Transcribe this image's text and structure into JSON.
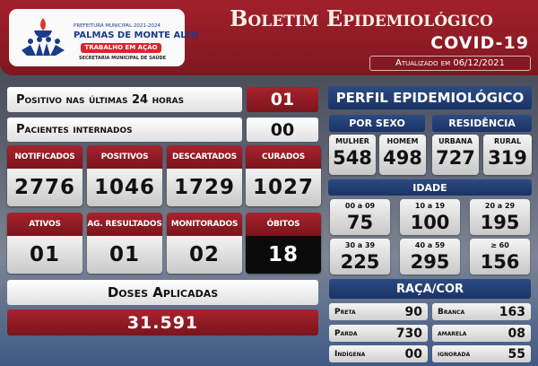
{
  "header": {
    "logo": {
      "line1": "PREFEITURA MUNICIPAL 2021-2024",
      "line2": "PALMAS DE MONTE ALTO",
      "line3": "TRABALHO EM AÇÃO",
      "line4": "SECRETARIA MUNICIPAL DE SAÚDE"
    },
    "title": "Boletim Epidemiológico",
    "subtitle": "COVID-19",
    "updated": "Atualizado em 06/12/2021"
  },
  "summary": [
    {
      "label": "Positivo nas últimas 24 horas",
      "value": "01"
    },
    {
      "label": "Pacientes internados",
      "value": "00"
    }
  ],
  "cards_row1": [
    {
      "label": "NOTIFICADOS",
      "value": "2776"
    },
    {
      "label": "POSITIVOS",
      "value": "1046"
    },
    {
      "label": "DESCARTADOS",
      "value": "1729"
    },
    {
      "label": "CURADOS",
      "value": "1027"
    }
  ],
  "cards_row2": [
    {
      "label": "ATIVOS",
      "value": "01"
    },
    {
      "label": "AG. RESULTADOS",
      "value": "01"
    },
    {
      "label": "MONITORADOS",
      "value": "02"
    },
    {
      "label": "ÓBITOS",
      "value": "18"
    }
  ],
  "doses": {
    "label": "Doses Aplicadas",
    "value": "31.591"
  },
  "perfil": {
    "title": "PERFIL EPIDEMIOLÓGICO",
    "sexo_title": "POR SEXO",
    "residencia_title": "RESIDÊNCIA",
    "sexo": [
      {
        "label": "MULHER",
        "value": "548"
      },
      {
        "label": "HOMEM",
        "value": "498"
      }
    ],
    "residencia": [
      {
        "label": "URBANA",
        "value": "727"
      },
      {
        "label": "RURAL",
        "value": "319"
      }
    ],
    "idade_title": "IDADE",
    "idade": [
      {
        "label": "00 a 09",
        "value": "75"
      },
      {
        "label": "10 a 19",
        "value": "100"
      },
      {
        "label": "20 a 29",
        "value": "195"
      },
      {
        "label": "30 a 39",
        "value": "225"
      },
      {
        "label": "40 a 59",
        "value": "295"
      },
      {
        "label": "≥ 60",
        "value": "156"
      }
    ],
    "raca_title": "RAÇA/COR",
    "raca": [
      {
        "label": "Preta",
        "value": "90"
      },
      {
        "label": "Branca",
        "value": "163"
      },
      {
        "label": "Parda",
        "value": "730"
      },
      {
        "label": "amarela",
        "value": "08"
      },
      {
        "label": "Indígena",
        "value": "00"
      },
      {
        "label": "ignorada",
        "value": "55"
      }
    ]
  },
  "colors": {
    "red": "#9b1c24",
    "navy": "#1f3c73",
    "black": "#0b0b0b"
  }
}
